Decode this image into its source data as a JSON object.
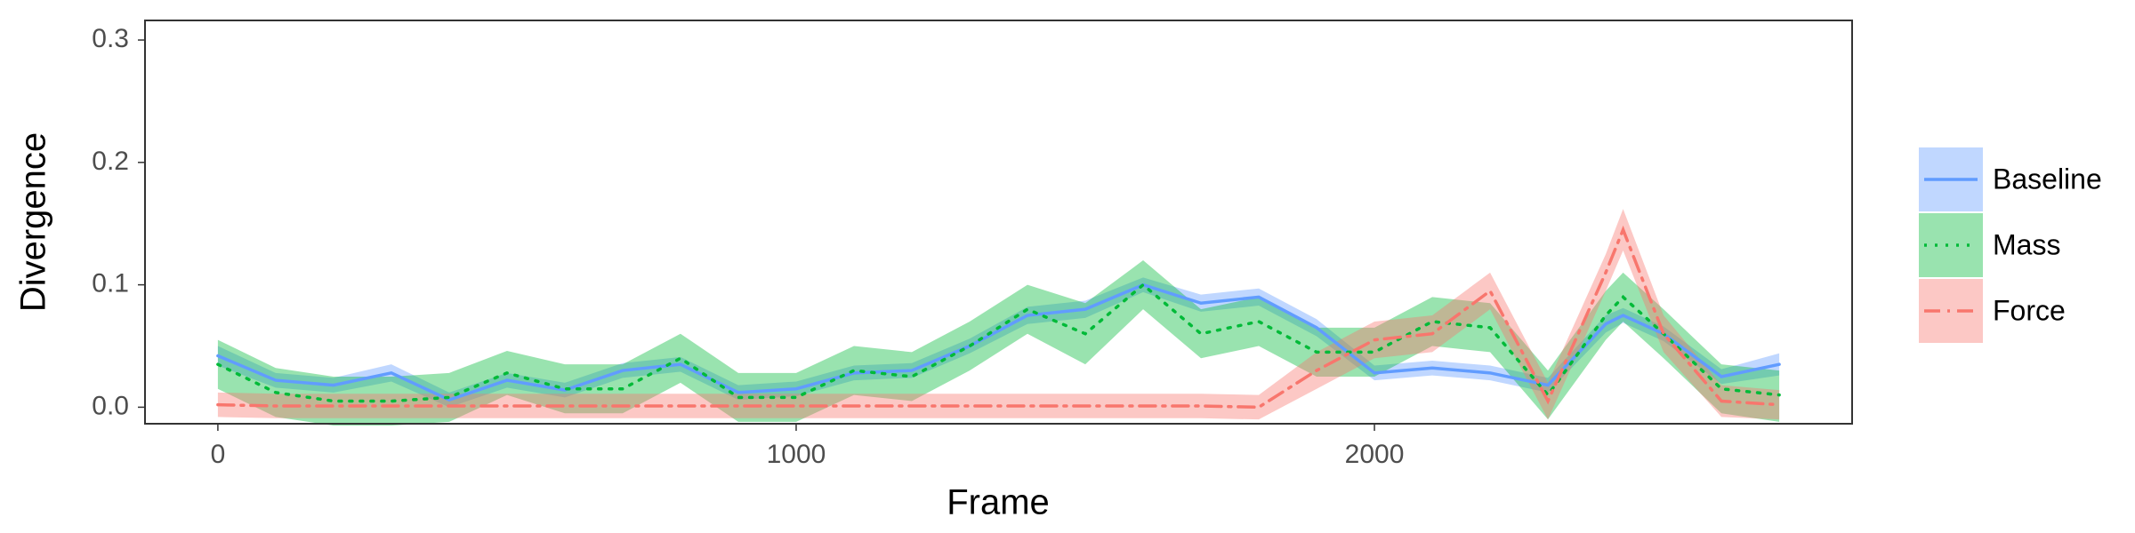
{
  "chart_data": {
    "type": "line",
    "x_label": "Frame",
    "y_label": "Divergence",
    "x": [
      0,
      100,
      200,
      300,
      400,
      500,
      600,
      700,
      800,
      900,
      1000,
      1100,
      1200,
      1300,
      1400,
      1500,
      1600,
      1700,
      1800,
      1900,
      2000,
      2100,
      2200,
      2300,
      2400,
      2430,
      2500,
      2600,
      2700
    ],
    "xlim": [
      -126,
      2826
    ],
    "xticks": [
      0,
      1000,
      2000
    ],
    "ylim": [
      -0.0135,
      0.316
    ],
    "yticks": [
      {
        "value": 0,
        "label": "0.0"
      },
      0.1,
      0.2,
      0.3
    ],
    "grid": false,
    "legend": "right",
    "series": [
      {
        "name": "Baseline",
        "color": "#619CFF",
        "dash": "solid",
        "values": [
          0.042,
          0.022,
          0.018,
          0.028,
          0.006,
          0.022,
          0.014,
          0.03,
          0.035,
          0.012,
          0.015,
          0.028,
          0.03,
          0.05,
          0.075,
          0.08,
          0.1,
          0.085,
          0.09,
          0.065,
          0.028,
          0.032,
          0.028,
          0.018,
          0.068,
          0.075,
          0.06,
          0.025,
          0.035
        ],
        "lower": [
          0.034,
          0.016,
          0.012,
          0.021,
          0.0,
          0.016,
          0.008,
          0.024,
          0.029,
          0.006,
          0.009,
          0.022,
          0.024,
          0.044,
          0.068,
          0.073,
          0.094,
          0.078,
          0.083,
          0.058,
          0.022,
          0.026,
          0.022,
          0.012,
          0.061,
          0.069,
          0.054,
          0.019,
          0.026
        ],
        "upper": [
          0.05,
          0.028,
          0.024,
          0.035,
          0.012,
          0.028,
          0.02,
          0.036,
          0.041,
          0.018,
          0.021,
          0.034,
          0.036,
          0.056,
          0.082,
          0.087,
          0.106,
          0.092,
          0.097,
          0.072,
          0.034,
          0.038,
          0.034,
          0.024,
          0.075,
          0.081,
          0.066,
          0.031,
          0.044
        ]
      },
      {
        "name": "Mass",
        "color": "#00BA38",
        "dash": "dotted",
        "values": [
          0.035,
          0.012,
          0.005,
          0.005,
          0.008,
          0.028,
          0.015,
          0.015,
          0.04,
          0.008,
          0.008,
          0.03,
          0.025,
          0.05,
          0.08,
          0.06,
          0.1,
          0.06,
          0.07,
          0.045,
          0.045,
          0.07,
          0.065,
          0.01,
          0.075,
          0.09,
          0.06,
          0.015,
          0.01
        ],
        "lower": [
          0.015,
          -0.008,
          -0.015,
          -0.015,
          -0.012,
          0.01,
          -0.005,
          -0.005,
          0.02,
          -0.012,
          -0.012,
          0.01,
          0.005,
          0.03,
          0.06,
          0.035,
          0.08,
          0.04,
          0.05,
          0.025,
          0.025,
          0.05,
          0.045,
          -0.01,
          0.055,
          0.07,
          0.04,
          -0.005,
          -0.012
        ],
        "upper": [
          0.055,
          0.032,
          0.025,
          0.025,
          0.028,
          0.046,
          0.035,
          0.035,
          0.06,
          0.028,
          0.028,
          0.05,
          0.045,
          0.07,
          0.1,
          0.085,
          0.12,
          0.08,
          0.09,
          0.065,
          0.065,
          0.09,
          0.085,
          0.03,
          0.095,
          0.11,
          0.08,
          0.035,
          0.03
        ]
      },
      {
        "name": "Force",
        "color": "#F8766D",
        "dash": "dashdot",
        "values": [
          0.002,
          0.001,
          0.001,
          0.001,
          0.001,
          0.001,
          0.001,
          0.001,
          0.001,
          0.001,
          0.001,
          0.001,
          0.001,
          0.001,
          0.001,
          0.001,
          0.001,
          0.001,
          0.0,
          0.03,
          0.055,
          0.06,
          0.095,
          0.005,
          0.11,
          0.145,
          0.06,
          0.005,
          0.002
        ],
        "lower": [
          -0.008,
          -0.009,
          -0.009,
          -0.009,
          -0.009,
          -0.009,
          -0.009,
          -0.009,
          -0.009,
          -0.009,
          -0.009,
          -0.009,
          -0.009,
          -0.009,
          -0.009,
          -0.009,
          -0.009,
          -0.009,
          -0.01,
          0.015,
          0.04,
          0.045,
          0.08,
          -0.01,
          0.095,
          0.128,
          0.045,
          -0.008,
          -0.01
        ],
        "upper": [
          0.012,
          0.011,
          0.011,
          0.011,
          0.011,
          0.011,
          0.011,
          0.011,
          0.011,
          0.011,
          0.011,
          0.011,
          0.011,
          0.011,
          0.011,
          0.011,
          0.011,
          0.011,
          0.01,
          0.045,
          0.07,
          0.075,
          0.11,
          0.02,
          0.125,
          0.162,
          0.075,
          0.018,
          0.014
        ]
      }
    ]
  }
}
